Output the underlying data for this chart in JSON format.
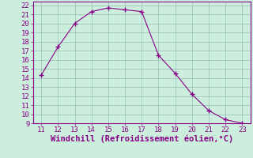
{
  "x": [
    11,
    12,
    13,
    14,
    15,
    16,
    17,
    18,
    19,
    20,
    21,
    22,
    23
  ],
  "y": [
    14.3,
    17.4,
    20.0,
    21.3,
    21.7,
    21.5,
    21.3,
    16.5,
    14.5,
    12.2,
    10.4,
    9.4,
    9.0
  ],
  "line_color": "#880088",
  "marker_color": "#880088",
  "bg_color": "#cceedd",
  "grid_color": "#99bbbb",
  "xlabel": "Windchill (Refroidissement éolien,°C)",
  "xlabel_color": "#880088",
  "tick_color": "#880088",
  "spine_color": "#880088",
  "xlim": [
    10.5,
    23.5
  ],
  "ylim": [
    9,
    22.4
  ],
  "xticks": [
    11,
    12,
    13,
    14,
    15,
    16,
    17,
    18,
    19,
    20,
    21,
    22,
    23
  ],
  "yticks": [
    9,
    10,
    11,
    12,
    13,
    14,
    15,
    16,
    17,
    18,
    19,
    20,
    21,
    22
  ],
  "font_size": 6.5,
  "xlabel_font_size": 7.5
}
